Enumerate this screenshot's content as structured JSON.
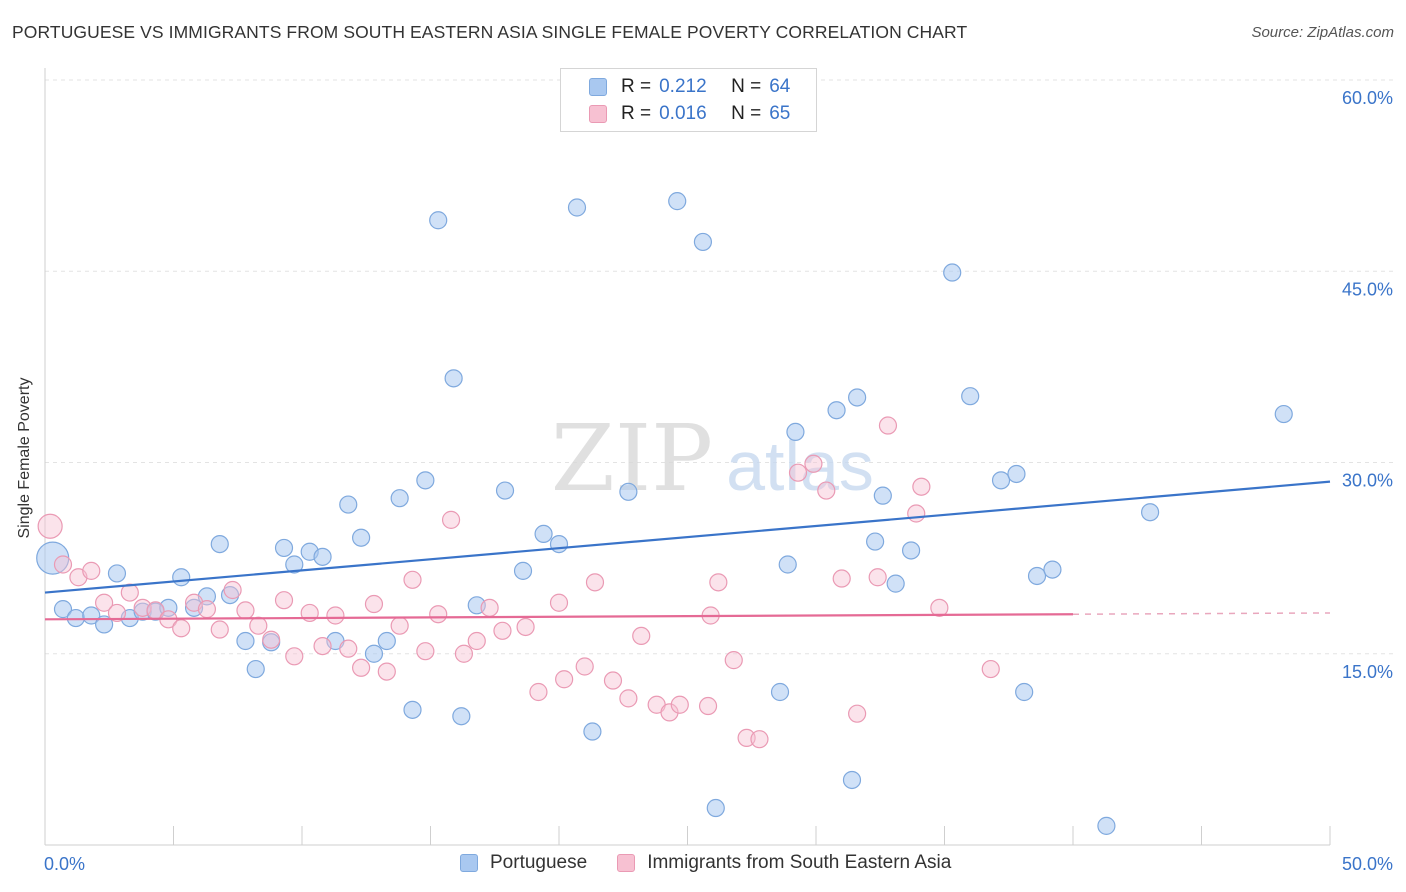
{
  "title": "PORTUGUESE VS IMMIGRANTS FROM SOUTH EASTERN ASIA SINGLE FEMALE POVERTY CORRELATION CHART",
  "source": "Source: ZipAtlas.com",
  "watermark": {
    "zip": "ZIP",
    "atlas": "atlas"
  },
  "legend": {
    "rows": [
      {
        "r_label": "R =",
        "r_value": "0.212",
        "n_label": "N =",
        "n_value": "64",
        "color": "#a9c8f0",
        "border": "#7fa9de"
      },
      {
        "r_label": "R =",
        "r_value": "0.016",
        "n_label": "N =",
        "n_value": "65",
        "color": "#f7c1d2",
        "border": "#ea9ab4"
      }
    ]
  },
  "bottom_legend": [
    {
      "label": "Portuguese",
      "color": "#a9c8f0",
      "border": "#7fa9de"
    },
    {
      "label": "Immigrants from South Eastern Asia",
      "color": "#f7c1d2",
      "border": "#ea9ab4"
    }
  ],
  "chart_data": {
    "type": "scatter",
    "title": "PORTUGUESE VS IMMIGRANTS FROM SOUTH EASTERN ASIA SINGLE FEMALE POVERTY CORRELATION CHART",
    "xlabel": "",
    "ylabel": "Single Female Poverty",
    "xlim": [
      0,
      50
    ],
    "ylim": [
      0,
      60
    ],
    "x_tick_labels": [
      "0.0%",
      "50.0%"
    ],
    "y_tick_labels": [
      {
        "value": 15,
        "label": "15.0%"
      },
      {
        "value": 30,
        "label": "30.0%"
      },
      {
        "value": 45,
        "label": "45.0%"
      },
      {
        "value": 60,
        "label": "60.0%"
      }
    ],
    "grid": "horizontal dashed",
    "legend_position": "top-center",
    "colors": {
      "portuguese": "#3a74c9",
      "immigrants": "#e56a95"
    },
    "series": [
      {
        "name": "Portuguese",
        "trend": {
          "x": [
            0,
            50
          ],
          "y": [
            19.8,
            28.5
          ]
        },
        "points": [
          [
            0.3,
            22.5
          ],
          [
            0.7,
            18.5
          ],
          [
            1.2,
            17.8
          ],
          [
            1.8,
            18.0
          ],
          [
            2.3,
            17.3
          ],
          [
            2.8,
            21.3
          ],
          [
            3.3,
            17.8
          ],
          [
            3.8,
            18.3
          ],
          [
            4.3,
            18.3
          ],
          [
            4.8,
            18.6
          ],
          [
            5.3,
            21.0
          ],
          [
            5.8,
            18.6
          ],
          [
            6.3,
            19.5
          ],
          [
            6.8,
            23.6
          ],
          [
            7.2,
            19.6
          ],
          [
            7.8,
            16.0
          ],
          [
            8.2,
            13.8
          ],
          [
            8.8,
            15.9
          ],
          [
            9.3,
            23.3
          ],
          [
            9.7,
            22.0
          ],
          [
            10.3,
            23.0
          ],
          [
            10.8,
            22.6
          ],
          [
            11.3,
            16.0
          ],
          [
            11.8,
            26.7
          ],
          [
            12.3,
            24.1
          ],
          [
            12.8,
            15.0
          ],
          [
            13.3,
            16.0
          ],
          [
            13.8,
            27.2
          ],
          [
            14.3,
            10.6
          ],
          [
            14.8,
            28.6
          ],
          [
            15.3,
            49.0
          ],
          [
            15.9,
            36.6
          ],
          [
            16.2,
            10.1
          ],
          [
            16.8,
            18.8
          ],
          [
            17.9,
            27.8
          ],
          [
            18.6,
            21.5
          ],
          [
            19.4,
            24.4
          ],
          [
            20.0,
            23.6
          ],
          [
            20.7,
            50.0
          ],
          [
            21.3,
            8.9
          ],
          [
            22.7,
            27.7
          ],
          [
            24.6,
            50.5
          ],
          [
            25.6,
            47.3
          ],
          [
            26.1,
            2.9
          ],
          [
            28.6,
            12.0
          ],
          [
            28.9,
            22.0
          ],
          [
            29.2,
            32.4
          ],
          [
            30.8,
            34.1
          ],
          [
            31.4,
            5.1
          ],
          [
            31.6,
            35.1
          ],
          [
            32.3,
            23.8
          ],
          [
            32.6,
            27.4
          ],
          [
            33.1,
            20.5
          ],
          [
            33.7,
            23.1
          ],
          [
            35.3,
            44.9
          ],
          [
            36.0,
            35.2
          ],
          [
            37.2,
            28.6
          ],
          [
            37.8,
            29.1
          ],
          [
            38.1,
            12.0
          ],
          [
            38.6,
            21.1
          ],
          [
            39.2,
            21.6
          ],
          [
            41.3,
            1.5
          ],
          [
            43.0,
            26.1
          ],
          [
            48.2,
            33.8
          ]
        ]
      },
      {
        "name": "Immigrants from South Eastern Asia",
        "trend": {
          "x": [
            0,
            40
          ],
          "y": [
            17.7,
            18.1
          ]
        },
        "points": [
          [
            0.2,
            25.0
          ],
          [
            0.7,
            22.0
          ],
          [
            1.3,
            21.0
          ],
          [
            1.8,
            21.5
          ],
          [
            2.3,
            19.0
          ],
          [
            2.8,
            18.2
          ],
          [
            3.3,
            19.8
          ],
          [
            3.8,
            18.6
          ],
          [
            4.3,
            18.4
          ],
          [
            4.8,
            17.7
          ],
          [
            5.3,
            17.0
          ],
          [
            5.8,
            19.0
          ],
          [
            6.3,
            18.5
          ],
          [
            6.8,
            16.9
          ],
          [
            7.3,
            20.0
          ],
          [
            7.8,
            18.4
          ],
          [
            8.3,
            17.2
          ],
          [
            8.8,
            16.1
          ],
          [
            9.3,
            19.2
          ],
          [
            9.7,
            14.8
          ],
          [
            10.3,
            18.2
          ],
          [
            10.8,
            15.6
          ],
          [
            11.3,
            18.0
          ],
          [
            11.8,
            15.4
          ],
          [
            12.3,
            13.9
          ],
          [
            12.8,
            18.9
          ],
          [
            13.3,
            13.6
          ],
          [
            13.8,
            17.2
          ],
          [
            14.3,
            20.8
          ],
          [
            14.8,
            15.2
          ],
          [
            15.3,
            18.1
          ],
          [
            15.8,
            25.5
          ],
          [
            16.3,
            15.0
          ],
          [
            16.8,
            16.0
          ],
          [
            17.3,
            18.6
          ],
          [
            17.8,
            16.8
          ],
          [
            18.7,
            17.1
          ],
          [
            19.2,
            12.0
          ],
          [
            20.0,
            19.0
          ],
          [
            20.2,
            13.0
          ],
          [
            21.0,
            14.0
          ],
          [
            21.4,
            20.6
          ],
          [
            22.1,
            12.9
          ],
          [
            22.7,
            11.5
          ],
          [
            23.2,
            16.4
          ],
          [
            23.8,
            11.0
          ],
          [
            24.3,
            10.4
          ],
          [
            24.7,
            11.0
          ],
          [
            25.8,
            10.9
          ],
          [
            25.9,
            18.0
          ],
          [
            26.2,
            20.6
          ],
          [
            26.8,
            14.5
          ],
          [
            27.3,
            8.4
          ],
          [
            27.8,
            8.3
          ],
          [
            29.3,
            29.2
          ],
          [
            29.9,
            29.9
          ],
          [
            30.4,
            27.8
          ],
          [
            31.0,
            20.9
          ],
          [
            31.6,
            10.3
          ],
          [
            32.4,
            21.0
          ],
          [
            32.8,
            32.9
          ],
          [
            33.9,
            26.0
          ],
          [
            34.1,
            28.1
          ],
          [
            34.8,
            18.6
          ],
          [
            36.8,
            13.8
          ]
        ]
      }
    ]
  }
}
